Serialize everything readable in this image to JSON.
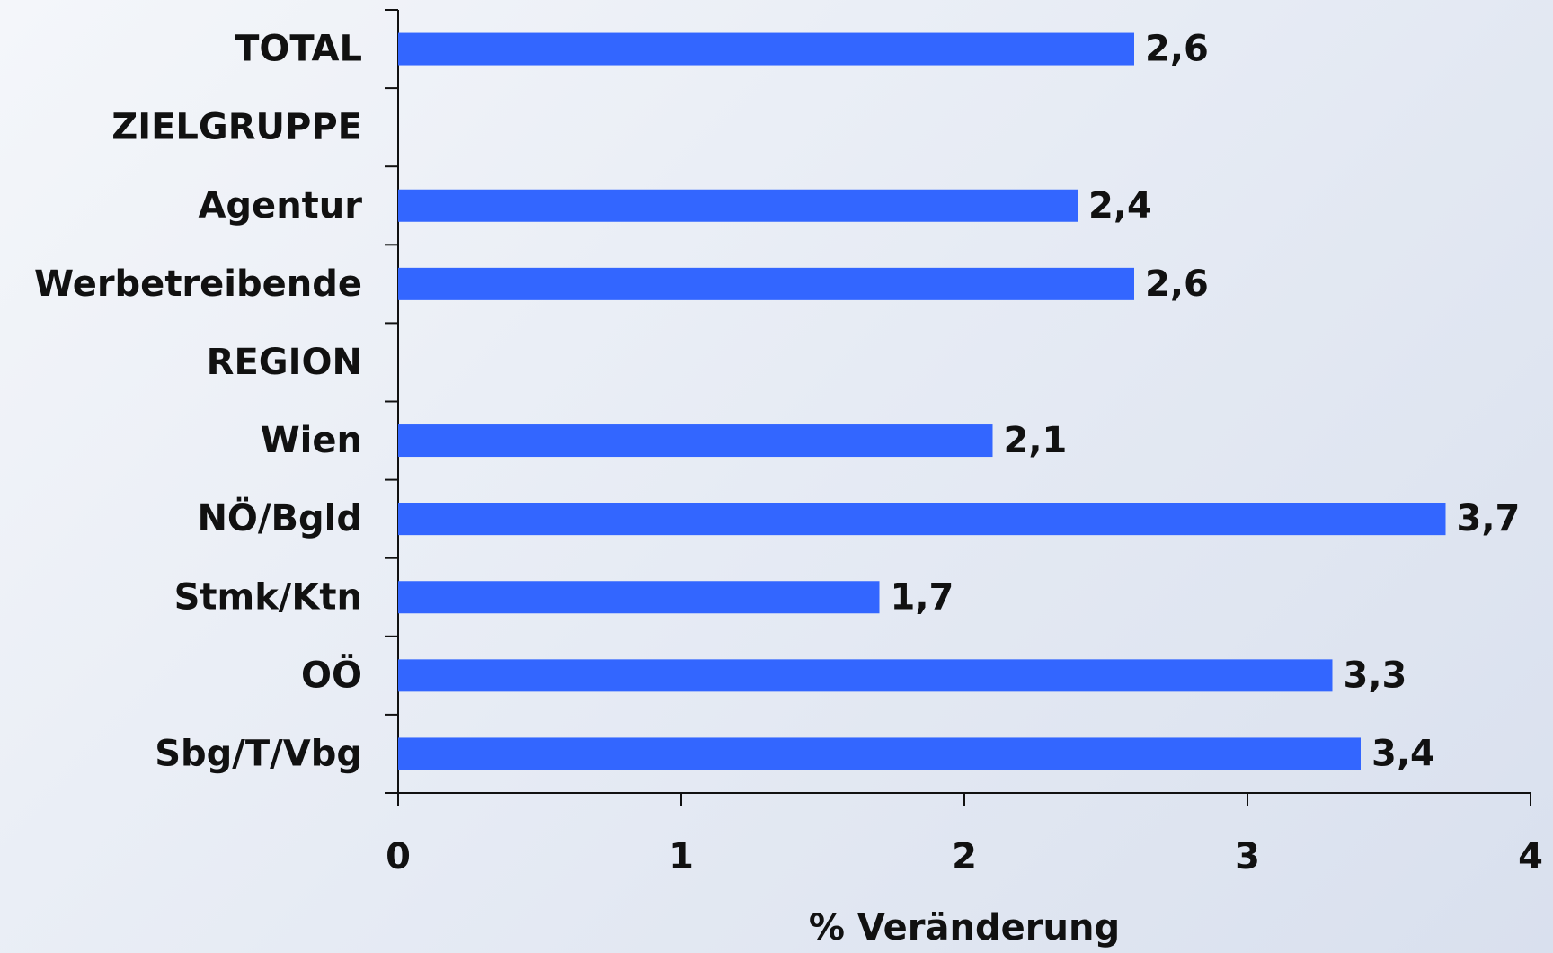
{
  "chart_data": {
    "type": "barh",
    "categories": [
      "TOTAL",
      "ZIELGRUPPE",
      "Agentur",
      "Werbetreibende",
      "REGION",
      "Wien",
      "NÖ/Bgld",
      "Stmk/Ktn",
      "OÖ",
      "Sbg/T/Vbg"
    ],
    "values": [
      2.6,
      null,
      2.4,
      2.6,
      null,
      2.1,
      3.7,
      1.7,
      3.3,
      3.4
    ],
    "value_labels": [
      "2,6",
      null,
      "2,4",
      "2,6",
      null,
      "2,1",
      "3,7",
      "1,7",
      "3,3",
      "3,4"
    ],
    "color": "#3366ff",
    "xlim": [
      0,
      4
    ],
    "xticks": [
      0,
      1,
      2,
      3,
      4
    ],
    "xlabel": "% Veränderung"
  }
}
